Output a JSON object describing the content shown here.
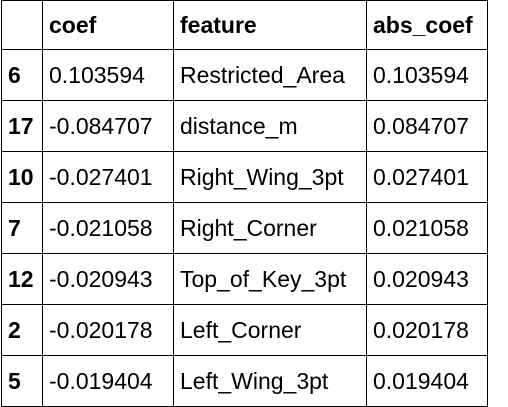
{
  "table": {
    "columns": {
      "index": "",
      "coef": "coef",
      "feature": "feature",
      "abs_coef": "abs_coef"
    },
    "rows": [
      {
        "index": "6",
        "coef": "0.103594",
        "feature": "Restricted_Area",
        "abs_coef": "0.103594"
      },
      {
        "index": "17",
        "coef": "-0.084707",
        "feature": "distance_m",
        "abs_coef": "0.084707"
      },
      {
        "index": "10",
        "coef": "-0.027401",
        "feature": "Right_Wing_3pt",
        "abs_coef": "0.027401"
      },
      {
        "index": "7",
        "coef": "-0.021058",
        "feature": "Right_Corner",
        "abs_coef": "0.021058"
      },
      {
        "index": "12",
        "coef": "-0.020943",
        "feature": "Top_of_Key_3pt",
        "abs_coef": "0.020943"
      },
      {
        "index": "2",
        "coef": "-0.020178",
        "feature": "Left_Corner",
        "abs_coef": "0.020178"
      },
      {
        "index": "5",
        "coef": "-0.019404",
        "feature": "Left_Wing_3pt",
        "abs_coef": "0.019404"
      }
    ]
  }
}
